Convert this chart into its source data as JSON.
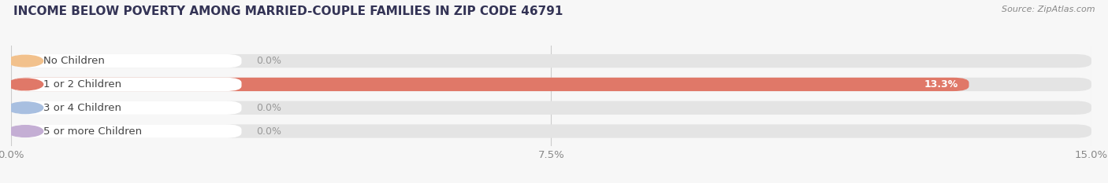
{
  "title": "INCOME BELOW POVERTY AMONG MARRIED-COUPLE FAMILIES IN ZIP CODE 46791",
  "source": "Source: ZipAtlas.com",
  "categories": [
    "No Children",
    "1 or 2 Children",
    "3 or 4 Children",
    "5 or more Children"
  ],
  "values": [
    0.0,
    13.3,
    0.0,
    0.0
  ],
  "bar_colors": [
    "#f2c18c",
    "#e07868",
    "#a8bfe0",
    "#c4aed4"
  ],
  "label_colors": [
    "#b8874a",
    "#c04040",
    "#5878b0",
    "#8060a0"
  ],
  "background_color": "#f7f7f7",
  "bar_bg_color": "#e4e4e4",
  "bar_white_color": "#ffffff",
  "xlim_max": 15.0,
  "xticks": [
    0.0,
    7.5,
    15.0
  ],
  "xticklabels": [
    "0.0%",
    "7.5%",
    "15.0%"
  ],
  "bar_height": 0.58,
  "label_fontsize": 9.5,
  "title_fontsize": 11,
  "value_fontsize": 9,
  "source_fontsize": 8
}
